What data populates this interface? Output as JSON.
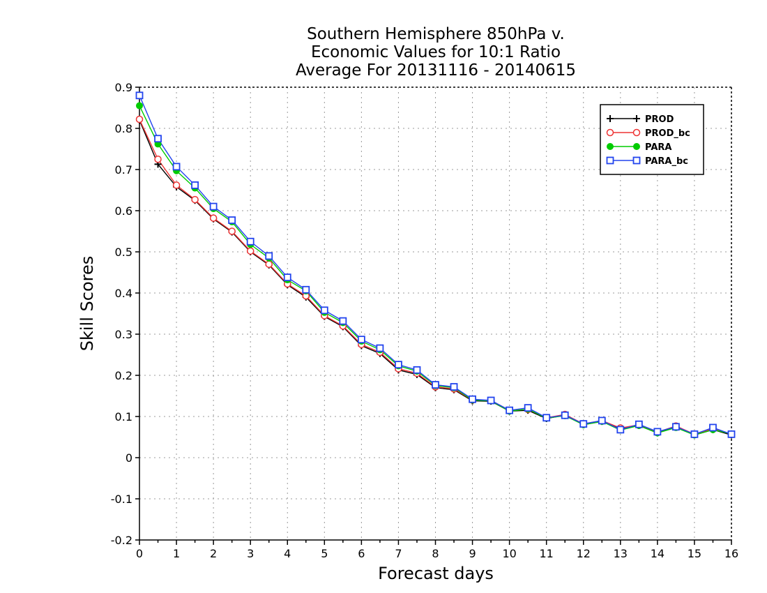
{
  "chart_data": {
    "type": "line",
    "title_lines": [
      "Southern Hemisphere 850hPa v.",
      "Economic Values for 10:1 Ratio",
      "Average For 20131116 - 20140615"
    ],
    "xlabel": "Forecast days",
    "ylabel": "Skill Scores",
    "xlim": [
      0,
      16
    ],
    "ylim": [
      -0.2,
      0.9
    ],
    "xticks": [
      "0",
      "1",
      "2",
      "3",
      "4",
      "5",
      "6",
      "7",
      "8",
      "9",
      "10",
      "11",
      "12",
      "13",
      "14",
      "15",
      "16"
    ],
    "yticks": [
      "-0.2",
      "-0.1",
      "0",
      "0.1",
      "0.2",
      "0.3",
      "0.4",
      "0.5",
      "0.6",
      "0.7",
      "0.8",
      "0.9"
    ],
    "grid": true,
    "legend_position": "top-right",
    "x": [
      0,
      0.5,
      1,
      1.5,
      2,
      2.5,
      3,
      3.5,
      4,
      4.5,
      5,
      5.5,
      6,
      6.5,
      7,
      7.5,
      8,
      8.5,
      9,
      9.5,
      10,
      10.5,
      11,
      11.5,
      12,
      12.5,
      13,
      13.5,
      14,
      14.5,
      15,
      15.5,
      16
    ],
    "series": [
      {
        "name": "PROD",
        "color": "#000000",
        "marker": "plus",
        "values": [
          0.82,
          0.713,
          0.658,
          0.625,
          0.58,
          0.548,
          0.5,
          0.468,
          0.42,
          0.39,
          0.343,
          0.318,
          0.272,
          0.253,
          0.213,
          0.202,
          0.17,
          0.165,
          0.138,
          0.137,
          0.113,
          0.115,
          0.095,
          0.103,
          0.08,
          0.088,
          0.07,
          0.078,
          0.06,
          0.075,
          0.055,
          0.068,
          0.055
        ]
      },
      {
        "name": "PROD_bc",
        "color": "#ee3333",
        "marker": "open-circle",
        "values": [
          0.822,
          0.725,
          0.662,
          0.627,
          0.582,
          0.55,
          0.502,
          0.47,
          0.422,
          0.393,
          0.345,
          0.32,
          0.275,
          0.256,
          0.216,
          0.205,
          0.172,
          0.167,
          0.14,
          0.139,
          0.115,
          0.117,
          0.097,
          0.105,
          0.082,
          0.09,
          0.072,
          0.08,
          0.062,
          0.077,
          0.057,
          0.07,
          0.057
        ]
      },
      {
        "name": "PARA",
        "color": "#00cc00",
        "marker": "filled-circle",
        "values": [
          0.855,
          0.762,
          0.697,
          0.655,
          0.605,
          0.573,
          0.518,
          0.485,
          0.432,
          0.405,
          0.353,
          0.328,
          0.283,
          0.262,
          0.223,
          0.21,
          0.175,
          0.17,
          0.14,
          0.138,
          0.113,
          0.118,
          0.096,
          0.102,
          0.08,
          0.088,
          0.067,
          0.078,
          0.06,
          0.073,
          0.055,
          0.068,
          0.058
        ]
      },
      {
        "name": "PARA_bc",
        "color": "#2244ee",
        "marker": "open-square",
        "values": [
          0.88,
          0.775,
          0.707,
          0.662,
          0.61,
          0.577,
          0.525,
          0.49,
          0.438,
          0.408,
          0.358,
          0.332,
          0.287,
          0.266,
          0.226,
          0.213,
          0.177,
          0.172,
          0.142,
          0.139,
          0.115,
          0.121,
          0.097,
          0.103,
          0.082,
          0.09,
          0.068,
          0.081,
          0.063,
          0.075,
          0.057,
          0.073,
          0.057
        ]
      }
    ]
  }
}
